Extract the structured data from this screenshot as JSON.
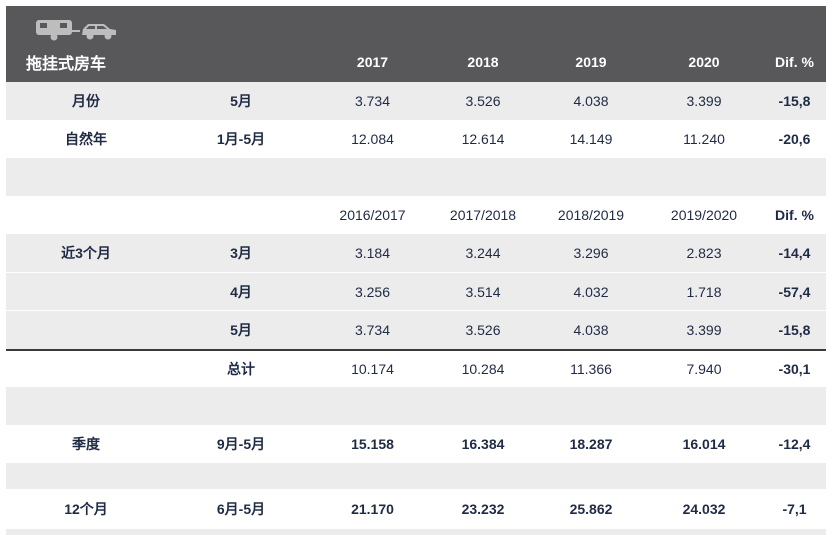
{
  "header": {
    "title": "拖挂式房车",
    "years": [
      "2017",
      "2018",
      "2019",
      "2020"
    ],
    "diff": "Dif. %"
  },
  "month": {
    "label": "月份",
    "period": "5月",
    "values": [
      "3.734",
      "3.526",
      "4.038",
      "3.399"
    ],
    "diff": "-15,8"
  },
  "natural_year": {
    "label": "自然年",
    "period": "1月-5月",
    "values": [
      "12.084",
      "12.614",
      "14.149",
      "11.240"
    ],
    "diff": "-20,6"
  },
  "recent": {
    "years": [
      "2016/2017",
      "2017/2018",
      "2018/2019",
      "2019/2020"
    ],
    "diff": "Dif. %",
    "label": "近3个月",
    "rows": [
      {
        "period": "3月",
        "values": [
          "3.184",
          "3.244",
          "3.296",
          "2.823"
        ],
        "diff": "-14,4"
      },
      {
        "period": "4月",
        "values": [
          "3.256",
          "3.514",
          "4.032",
          "1.718"
        ],
        "diff": "-57,4"
      },
      {
        "period": "5月",
        "values": [
          "3.734",
          "3.526",
          "4.038",
          "3.399"
        ],
        "diff": "-15,8"
      }
    ],
    "total": {
      "period": "总计",
      "values": [
        "10.174",
        "10.284",
        "11.366",
        "7.940"
      ],
      "diff": "-30,1"
    }
  },
  "season": {
    "label": "季度",
    "period": "9月-5月",
    "values": [
      "15.158",
      "16.384",
      "18.287",
      "16.014"
    ],
    "diff": "-12,4"
  },
  "twelve": {
    "label": "12个月",
    "period": "6月-5月",
    "values": [
      "21.170",
      "23.232",
      "25.862",
      "24.032"
    ],
    "diff": "-7,1"
  },
  "icons": [
    "caravan-icon",
    "car-icon"
  ]
}
